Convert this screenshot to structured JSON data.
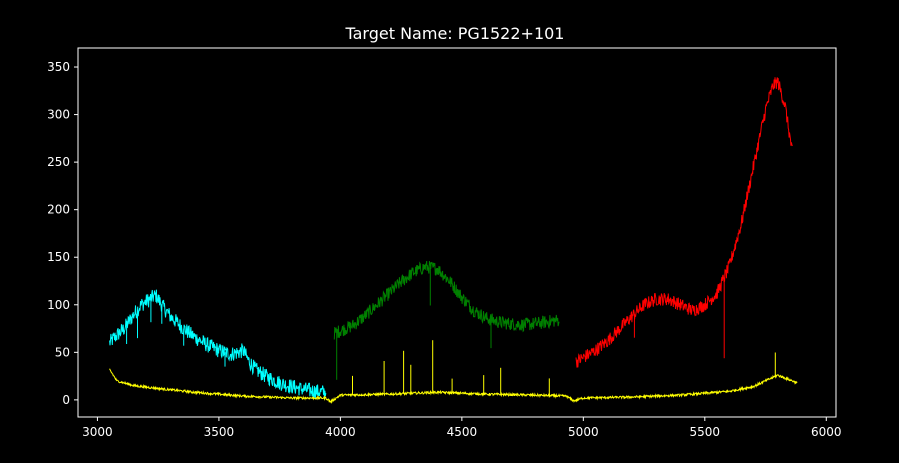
{
  "chart_data": {
    "type": "line",
    "title": "Target Name: PG1522+101",
    "xlabel": "",
    "ylabel": "",
    "xlim": [
      2920,
      6040
    ],
    "ylim": [
      -18,
      370
    ],
    "xticks": [
      3000,
      3500,
      4000,
      4500,
      5000,
      5500,
      6000
    ],
    "yticks": [
      0,
      50,
      100,
      150,
      200,
      250,
      300,
      350
    ],
    "grid": false,
    "legend": "none",
    "background": "#000000",
    "series": [
      {
        "color": "#00ffff",
        "noise": 8,
        "x": [
          3050,
          3080,
          3110,
          3150,
          3180,
          3210,
          3240,
          3270,
          3300,
          3350,
          3400,
          3450,
          3500,
          3550,
          3580,
          3600,
          3620,
          3650,
          3700,
          3750,
          3800,
          3850,
          3900,
          3940
        ],
        "y": [
          60,
          68,
          75,
          90,
          100,
          105,
          110,
          98,
          88,
          76,
          66,
          58,
          52,
          48,
          50,
          52,
          42,
          32,
          24,
          18,
          14,
          11,
          9,
          8
        ],
        "spikes": [
          [
            3120,
            20
          ],
          [
            3165,
            30
          ],
          [
            3220,
            25
          ],
          [
            3265,
            20
          ],
          [
            3355,
            18
          ],
          [
            3525,
            15
          ]
        ]
      },
      {
        "color": "#008000",
        "noise": 7,
        "x": [
          3975,
          4050,
          4100,
          4150,
          4200,
          4250,
          4300,
          4350,
          4400,
          4450,
          4500,
          4550,
          4600,
          4650,
          4700,
          4750,
          4800,
          4850,
          4900
        ],
        "y": [
          70,
          78,
          88,
          100,
          112,
          124,
          134,
          140,
          138,
          125,
          108,
          94,
          86,
          82,
          80,
          79,
          80,
          82,
          84
        ],
        "spikes": [
          [
            3985,
            50
          ],
          [
            4370,
            40
          ],
          [
            4620,
            30
          ]
        ]
      },
      {
        "color": "#ff0000",
        "noise": 7,
        "x": [
          4970,
          5050,
          5100,
          5150,
          5200,
          5250,
          5300,
          5350,
          5400,
          5450,
          5500,
          5550,
          5600,
          5650,
          5700,
          5750,
          5780,
          5800,
          5830,
          5860
        ],
        "y": [
          40,
          52,
          62,
          75,
          88,
          100,
          106,
          106,
          100,
          94,
          100,
          112,
          140,
          185,
          245,
          305,
          330,
          335,
          310,
          260
        ],
        "spikes": [
          [
            5210,
            25
          ],
          [
            5580,
            85
          ]
        ]
      },
      {
        "color": "#ffff00",
        "noise": 1.2,
        "x": [
          3050,
          3080,
          3150,
          3250,
          3400,
          3600,
          3800,
          3940,
          3960,
          4000,
          4200,
          4400,
          4600,
          4800,
          4930,
          4960,
          5000,
          5200,
          5400,
          5600,
          5700,
          5750,
          5800,
          5860,
          5880
        ],
        "y": [
          32,
          20,
          15,
          12,
          8,
          4,
          2,
          2,
          -2,
          5,
          6,
          8,
          6,
          5,
          4,
          -1,
          2,
          3,
          5,
          9,
          14,
          20,
          26,
          20,
          18
        ],
        "spikes": [
          [
            4050,
            20
          ],
          [
            4180,
            35
          ],
          [
            4260,
            45
          ],
          [
            4290,
            30
          ],
          [
            4380,
            55
          ],
          [
            4460,
            15
          ],
          [
            4590,
            20
          ],
          [
            4660,
            28
          ],
          [
            4860,
            18
          ],
          [
            5790,
            25
          ]
        ]
      }
    ]
  }
}
